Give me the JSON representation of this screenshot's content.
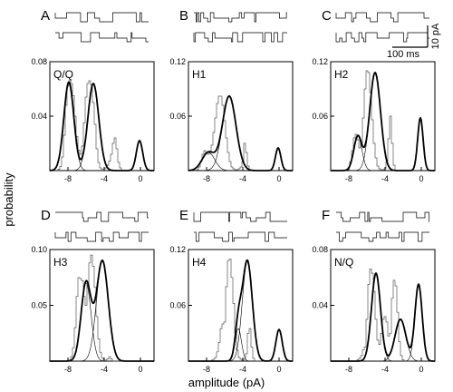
{
  "figure": {
    "ylabel": "probability",
    "xlabel": "amplitude (pA)",
    "scale_bar": {
      "current": "10 pA",
      "time": "100 ms"
    }
  },
  "chart_data": [
    {
      "type": "line",
      "panel": "A",
      "label": "Q/Q",
      "xlim": [
        -10,
        1.5
      ],
      "ylim": [
        0,
        0.08
      ],
      "xticks": [
        -8,
        -4,
        0
      ],
      "xtick_labels": [
        "-8",
        "-4",
        "0"
      ],
      "yticks": [
        0.04,
        0.08
      ],
      "ytick_labels": [
        "0.04",
        "0.08"
      ],
      "histogram": {
        "bin_start": -9.5,
        "bin_width": 0.2,
        "values": [
          0,
          0,
          0.001,
          0.003,
          0.01,
          0.026,
          0.048,
          0.062,
          0.066,
          0.064,
          0.055,
          0.04,
          0.025,
          0.015,
          0.012,
          0.018,
          0.035,
          0.054,
          0.064,
          0.066,
          0.063,
          0.05,
          0.034,
          0.016,
          0.006,
          0.002,
          0.001,
          0.001,
          0.002,
          0.004,
          0.007,
          0.012,
          0.02,
          0.024,
          0.016,
          0.006,
          0.002,
          0,
          0,
          0,
          0
        ]
      },
      "fits": [
        {
          "mean": -7.9,
          "sd": 0.55,
          "peak": 0.065
        },
        {
          "mean": -5.2,
          "sd": 0.6,
          "peak": 0.064
        },
        {
          "mean": -0.1,
          "sd": 0.35,
          "peak": 0.022
        }
      ]
    },
    {
      "type": "line",
      "panel": "B",
      "label": "H1",
      "xlim": [
        -10,
        1.5
      ],
      "ylim": [
        0,
        0.12
      ],
      "xticks": [
        -8,
        -4,
        0
      ],
      "xtick_labels": [
        "-8",
        "-4",
        "0"
      ],
      "yticks": [
        0.06,
        0.12
      ],
      "ytick_labels": [
        "0.06",
        "0.12"
      ],
      "histogram": {
        "bin_start": -9.5,
        "bin_width": 0.2,
        "values": [
          0,
          0,
          0.001,
          0.004,
          0.01,
          0.018,
          0.022,
          0.02,
          0.018,
          0.02,
          0.028,
          0.042,
          0.058,
          0.074,
          0.082,
          0.082,
          0.072,
          0.055,
          0.036,
          0.02,
          0.01,
          0.004,
          0.002,
          0.001,
          0.001,
          0.002,
          0.004,
          0.01,
          0.03,
          0.02,
          0.005,
          0.001,
          0,
          0,
          0,
          0,
          0,
          0,
          0,
          0,
          0
        ]
      },
      "fits": [
        {
          "mean": -7.8,
          "sd": 0.7,
          "peak": 0.02
        },
        {
          "mean": -5.5,
          "sd": 0.75,
          "peak": 0.082
        },
        {
          "mean": -0.1,
          "sd": 0.3,
          "peak": 0.025
        }
      ]
    },
    {
      "type": "line",
      "panel": "C",
      "label": "H2",
      "xlim": [
        -10,
        1.5
      ],
      "ylim": [
        0,
        0.12
      ],
      "xticks": [
        -8,
        -4,
        0
      ],
      "xtick_labels": [
        "-8",
        "-4",
        "0"
      ],
      "yticks": [
        0.06,
        0.12
      ],
      "ytick_labels": [
        "0.06",
        "0.12"
      ],
      "histogram": {
        "bin_start": -9.5,
        "bin_width": 0.2,
        "values": [
          0,
          0,
          0,
          0,
          0,
          0,
          0.001,
          0.003,
          0.01,
          0.022,
          0.036,
          0.04,
          0.034,
          0.025,
          0.03,
          0.058,
          0.09,
          0.11,
          0.108,
          0.086,
          0.056,
          0.03,
          0.014,
          0.005,
          0.002,
          0.001,
          0.001,
          0.002,
          0.01,
          0.035,
          0.06,
          0.03,
          0.006,
          0,
          0,
          0,
          0,
          0,
          0,
          0,
          0
        ]
      },
      "fits": [
        {
          "mean": -7.0,
          "sd": 0.45,
          "peak": 0.038
        },
        {
          "mean": -5.1,
          "sd": 0.6,
          "peak": 0.108
        },
        {
          "mean": -0.1,
          "sd": 0.3,
          "peak": 0.058
        }
      ]
    },
    {
      "type": "line",
      "panel": "D",
      "label": "H3",
      "xlim": [
        -10,
        1.5
      ],
      "ylim": [
        0,
        0.1
      ],
      "xticks": [
        -8,
        -4,
        0
      ],
      "xtick_labels": [
        "-8",
        "-4",
        "0"
      ],
      "yticks": [
        0.05,
        0.1
      ],
      "ytick_labels": [
        "0.05",
        "0.10"
      ],
      "histogram": {
        "bin_start": -9.5,
        "bin_width": 0.2,
        "values": [
          0,
          0,
          0,
          0,
          0,
          0,
          0,
          0,
          0.001,
          0.004,
          0.012,
          0.03,
          0.058,
          0.075,
          0.074,
          0.072,
          0.058,
          0.05,
          0.068,
          0.088,
          0.095,
          0.085,
          0.066,
          0.04,
          0.02,
          0.008,
          0.003,
          0.001,
          0.001,
          0.002,
          0.004,
          0.002,
          0,
          0,
          0,
          0,
          0,
          0,
          0,
          0,
          0
        ]
      },
      "fits": [
        {
          "mean": -6.0,
          "sd": 0.55,
          "peak": 0.07
        },
        {
          "mean": -4.2,
          "sd": 0.65,
          "peak": 0.09
        }
      ]
    },
    {
      "type": "line",
      "panel": "E",
      "label": "H4",
      "xlim": [
        -10,
        1.5
      ],
      "ylim": [
        0,
        0.12
      ],
      "xticks": [
        -8,
        -4,
        0
      ],
      "xtick_labels": [
        "-8",
        "-4",
        "0"
      ],
      "yticks": [
        0.06,
        0.12
      ],
      "ytick_labels": [
        "0.06",
        "0.12"
      ],
      "histogram": {
        "bin_start": -9.5,
        "bin_width": 0.2,
        "values": [
          0,
          0,
          0,
          0,
          0,
          0,
          0,
          0,
          0,
          0,
          0.001,
          0.002,
          0.004,
          0.01,
          0.02,
          0.035,
          0.04,
          0.042,
          0.08,
          0.108,
          0.11,
          0.09,
          0.062,
          0.03,
          0.012,
          0.004,
          0.002,
          0.001,
          0.002,
          0.008,
          0.03,
          0.035,
          0.015,
          0.003,
          0,
          0,
          0,
          0,
          0,
          0,
          0
        ]
      },
      "fits": [
        {
          "mean": -4.5,
          "sd": 0.35,
          "peak": 0.035
        },
        {
          "mean": -3.5,
          "sd": 0.55,
          "peak": 0.108
        },
        {
          "mean": 0.0,
          "sd": 0.35,
          "peak": 0.034
        }
      ]
    },
    {
      "type": "line",
      "panel": "F",
      "label": "N/Q",
      "xlim": [
        -10,
        1.5
      ],
      "ylim": [
        0,
        0.08
      ],
      "xticks": [
        -8,
        -4,
        0
      ],
      "xtick_labels": [
        "-8",
        "-4",
        "0"
      ],
      "yticks": [
        0.04,
        0.08
      ],
      "ytick_labels": [
        "0.04",
        "0.08"
      ],
      "histogram": {
        "bin_start": -9.5,
        "bin_width": 0.2,
        "values": [
          0,
          0,
          0,
          0,
          0,
          0,
          0,
          0,
          0,
          0,
          0,
          0,
          0.001,
          0.002,
          0.004,
          0.008,
          0.01,
          0.03,
          0.055,
          0.066,
          0.063,
          0.05,
          0.03,
          0.015,
          0.012,
          0.02,
          0.03,
          0.032,
          0.028,
          0.018,
          0.02,
          0.045,
          0.058,
          0.054,
          0.035,
          0.014,
          0.004,
          0.001,
          0,
          0,
          0
        ]
      },
      "fits": [
        {
          "mean": -5.0,
          "sd": 0.5,
          "peak": 0.063
        },
        {
          "mean": -2.3,
          "sd": 0.6,
          "peak": 0.03
        },
        {
          "mean": -0.3,
          "sd": 0.4,
          "peak": 0.055
        }
      ]
    }
  ]
}
